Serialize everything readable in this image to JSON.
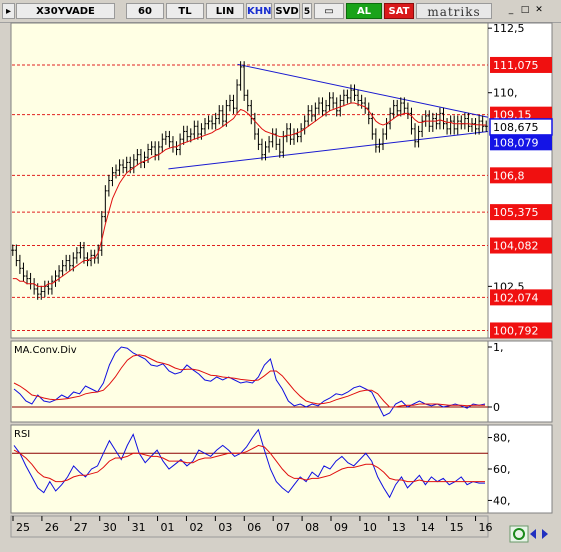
{
  "toolbar": {
    "symbol": "X30YVADE",
    "period": "60",
    "currency": "TL",
    "scale": "LIN",
    "khn": "KHN",
    "svd": "SVD",
    "five": "5",
    "buy": "AL",
    "sell": "SAT",
    "brand": "matriks",
    "min_glyph": "_",
    "max_glyph": "□",
    "close_glyph": "✕"
  },
  "colors": {
    "background": "#ffffe4",
    "price": "#000000",
    "ma": "#e01010",
    "trend": "#1a1ad0",
    "level_label_bg": "#f01010",
    "current_label_bg": "#1414e6",
    "signal_line": "#e01010",
    "macd_line": "#1010e0"
  },
  "chart_data": [
    {
      "type": "candlestick",
      "panel": "price",
      "title": "",
      "xlabel": "",
      "ylabel": "",
      "ylim": [
        100.5,
        112.7
      ],
      "x_ticks": [
        "25",
        "26",
        "27",
        "30",
        "31",
        "01",
        "02",
        "03",
        "06",
        "07",
        "08",
        "09",
        "10",
        "13",
        "14",
        "15",
        "16"
      ],
      "y_axis_ticks": [
        {
          "value": 112.5,
          "label": "112,5"
        },
        {
          "value": 110,
          "label": "110,"
        },
        {
          "value": 102.5,
          "label": "102,5"
        }
      ],
      "level_lines": [
        {
          "value": 111.075,
          "label": "111,075"
        },
        {
          "value": 109.15,
          "label": "109,15"
        },
        {
          "value": 106.8,
          "label": "106,8"
        },
        {
          "value": 105.375,
          "label": "105,375"
        },
        {
          "value": 104.082,
          "label": "104,082"
        },
        {
          "value": 102.074,
          "label": "102,074"
        },
        {
          "value": 100.792,
          "label": "100,792"
        }
      ],
      "current_price": {
        "value": 108.675,
        "label": "108,675"
      },
      "current_level": {
        "value": 108.079,
        "label": "108,079"
      },
      "close_series": [
        103.9,
        103.5,
        103.2,
        102.9,
        102.8,
        102.6,
        102.4,
        102.2,
        102.3,
        102.5,
        102.4,
        102.7,
        102.9,
        103.1,
        103.3,
        103.5,
        103.3,
        103.6,
        103.8,
        104.0,
        103.6,
        103.5,
        103.7,
        103.6,
        103.9,
        105.2,
        106.2,
        106.6,
        106.9,
        107.0,
        107.2,
        107.1,
        107.3,
        107.1,
        107.4,
        107.6,
        107.3,
        107.5,
        107.8,
        107.9,
        107.6,
        107.9,
        108.2,
        108.3,
        108.1,
        107.9,
        107.8,
        108.2,
        108.5,
        108.3,
        108.4,
        108.7,
        108.4,
        108.6,
        108.8,
        108.9,
        108.8,
        109.0,
        109.3,
        108.9,
        109.5,
        109.7,
        109.4,
        110.3,
        111.0,
        109.9,
        109.5,
        109.0,
        108.4,
        108.0,
        107.6,
        107.9,
        108.1,
        108.4,
        108.0,
        107.7,
        108.3,
        108.6,
        108.2,
        108.4,
        108.3,
        108.6,
        108.9,
        109.3,
        109.1,
        109.4,
        109.6,
        109.3,
        109.5,
        109.8,
        109.6,
        109.3,
        109.7,
        109.9,
        109.8,
        110.1,
        109.9,
        109.7,
        109.6,
        109.4,
        109.0,
        108.4,
        107.9,
        108.0,
        108.4,
        108.8,
        109.2,
        109.5,
        109.3,
        109.6,
        109.4,
        109.2,
        108.6,
        108.1,
        108.5,
        108.9,
        109.1,
        108.7,
        109.0,
        108.8,
        109.2,
        108.8,
        108.6,
        108.9,
        108.6,
        108.9,
        108.8,
        109.0,
        108.7,
        108.8,
        108.6,
        108.9,
        108.7,
        108.7
      ],
      "ma_series": [
        102.8,
        102.8,
        102.7,
        102.7,
        102.6,
        102.6,
        102.6,
        102.5,
        102.5,
        102.5,
        102.6,
        102.6,
        102.7,
        102.8,
        102.9,
        103.0,
        103.1,
        103.2,
        103.3,
        103.4,
        103.5,
        103.5,
        103.6,
        103.6,
        103.8,
        104.3,
        104.9,
        105.4,
        105.9,
        106.2,
        106.5,
        106.7,
        106.9,
        107.0,
        107.1,
        107.2,
        107.3,
        107.35,
        107.4,
        107.5,
        107.55,
        107.6,
        107.7,
        107.8,
        107.85,
        107.9,
        107.9,
        108.0,
        108.05,
        108.1,
        108.15,
        108.2,
        108.25,
        108.3,
        108.35,
        108.4,
        108.45,
        108.55,
        108.6,
        108.7,
        108.8,
        108.9,
        109.0,
        109.2,
        109.35,
        109.3,
        109.2,
        109.05,
        108.9,
        108.75,
        108.6,
        108.5,
        108.45,
        108.4,
        108.35,
        108.3,
        108.3,
        108.35,
        108.35,
        108.4,
        108.45,
        108.5,
        108.6,
        108.7,
        108.8,
        108.9,
        109.0,
        109.1,
        109.2,
        109.3,
        109.35,
        109.4,
        109.45,
        109.5,
        109.55,
        109.6,
        109.6,
        109.55,
        109.5,
        109.45,
        109.3,
        109.1,
        108.9,
        108.8,
        108.75,
        108.8,
        108.9,
        109.0,
        109.1,
        109.15,
        109.2,
        109.2,
        109.1,
        108.95,
        108.85,
        108.85,
        108.9,
        108.9,
        108.9,
        108.9,
        108.95,
        108.9,
        108.85,
        108.85,
        108.8,
        108.8,
        108.8,
        108.8,
        108.8,
        108.78,
        108.76,
        108.76,
        108.75,
        108.75
      ],
      "trendlines": [
        {
          "from": [
            0.33,
            107.05
          ],
          "to": [
            1.0,
            108.5
          ]
        },
        {
          "from": [
            0.475,
            111.1
          ],
          "to": [
            1.0,
            109.05
          ]
        }
      ]
    },
    {
      "type": "line",
      "panel": "macd",
      "title": "MA.Conv.Div",
      "ylim": [
        -0.25,
        1.1
      ],
      "y_axis_ticks": [
        {
          "value": 1,
          "label": "1,"
        },
        {
          "value": 0,
          "label": "0"
        }
      ],
      "series": [
        {
          "name": "MACD",
          "values": [
            0.3,
            0.22,
            0.1,
            0.05,
            0.2,
            0.1,
            0.08,
            0.12,
            0.2,
            0.15,
            0.25,
            0.22,
            0.35,
            0.3,
            0.25,
            0.4,
            0.7,
            0.9,
            1.0,
            0.98,
            0.9,
            0.85,
            0.8,
            0.7,
            0.68,
            0.72,
            0.6,
            0.55,
            0.58,
            0.7,
            0.62,
            0.55,
            0.45,
            0.43,
            0.5,
            0.45,
            0.5,
            0.45,
            0.4,
            0.42,
            0.4,
            0.5,
            0.7,
            0.8,
            0.45,
            0.3,
            0.1,
            0.02,
            0.05,
            0.0,
            0.05,
            0.02,
            0.1,
            0.15,
            0.22,
            0.2,
            0.25,
            0.32,
            0.35,
            0.3,
            0.25,
            0.05,
            -0.15,
            -0.1,
            0.05,
            0.1,
            0.0,
            0.05,
            0.1,
            0.05,
            0.02,
            0.05,
            0.0,
            0.02,
            0.05,
            0.02,
            -0.02,
            0.05,
            0.03,
            0.05
          ]
        },
        {
          "name": "Signal",
          "values": [
            0.4,
            0.35,
            0.28,
            0.2,
            0.18,
            0.15,
            0.13,
            0.12,
            0.13,
            0.14,
            0.16,
            0.18,
            0.22,
            0.24,
            0.25,
            0.28,
            0.38,
            0.5,
            0.65,
            0.78,
            0.85,
            0.87,
            0.85,
            0.8,
            0.75,
            0.73,
            0.7,
            0.65,
            0.62,
            0.63,
            0.63,
            0.61,
            0.57,
            0.53,
            0.52,
            0.5,
            0.49,
            0.48,
            0.46,
            0.45,
            0.44,
            0.45,
            0.52,
            0.6,
            0.6,
            0.52,
            0.4,
            0.28,
            0.18,
            0.1,
            0.07,
            0.05,
            0.06,
            0.08,
            0.12,
            0.15,
            0.18,
            0.22,
            0.26,
            0.28,
            0.28,
            0.22,
            0.1,
            0.0,
            0.0,
            0.02,
            0.03,
            0.03,
            0.05,
            0.05,
            0.05,
            0.05,
            0.04,
            0.03,
            0.03,
            0.03,
            0.02,
            0.03,
            0.03,
            0.03
          ]
        }
      ],
      "zero_line": 0
    },
    {
      "type": "line",
      "panel": "rsi",
      "title": "RSI",
      "ylim": [
        32,
        88
      ],
      "y_axis_ticks": [
        {
          "value": 80,
          "label": "80,"
        },
        {
          "value": 60,
          "label": "60,"
        },
        {
          "value": 40,
          "label": "40,"
        }
      ],
      "reference_lines": [
        70
      ],
      "series": [
        {
          "name": "RSI",
          "values": [
            75,
            70,
            62,
            55,
            48,
            45,
            52,
            46,
            50,
            55,
            62,
            58,
            55,
            60,
            62,
            70,
            78,
            72,
            66,
            75,
            82,
            70,
            64,
            68,
            72,
            65,
            60,
            63,
            66,
            62,
            65,
            72,
            70,
            68,
            72,
            75,
            72,
            68,
            70,
            74,
            80,
            85,
            72,
            60,
            52,
            48,
            45,
            50,
            55,
            52,
            58,
            55,
            62,
            60,
            65,
            68,
            64,
            62,
            66,
            70,
            65,
            55,
            48,
            42,
            50,
            55,
            48,
            52,
            56,
            50,
            55,
            52,
            54,
            50,
            52,
            55,
            50,
            52,
            51,
            51
          ]
        },
        {
          "name": "Signal",
          "values": [
            72,
            70,
            67,
            63,
            58,
            55,
            54,
            52,
            52,
            53,
            55,
            56,
            56,
            57,
            58,
            61,
            65,
            67,
            67,
            68,
            70,
            70,
            69,
            68,
            68,
            67,
            65,
            65,
            65,
            64,
            64,
            66,
            67,
            67,
            68,
            69,
            70,
            70,
            70,
            71,
            73,
            75,
            74,
            70,
            65,
            60,
            56,
            54,
            54,
            53,
            54,
            54,
            55,
            56,
            58,
            60,
            61,
            61,
            62,
            63,
            63,
            61,
            58,
            54,
            53,
            53,
            52,
            52,
            53,
            52,
            52,
            52,
            52,
            52,
            52,
            52,
            52,
            52,
            52,
            52
          ]
        }
      ]
    }
  ]
}
